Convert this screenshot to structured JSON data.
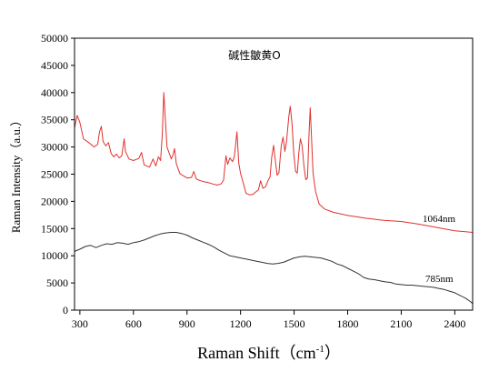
{
  "chart_data": {
    "type": "line",
    "title": "碱性皺黄O",
    "xlabel": "Raman Shift（cm",
    "xlabel_sup": "-1",
    "xlabel_close": "）",
    "ylabel": "Raman Intensity（a.u.）",
    "xlim": [
      270,
      2500
    ],
    "ylim": [
      0,
      50000
    ],
    "x_ticks": [
      300,
      600,
      900,
      1200,
      1500,
      1800,
      2100,
      2400
    ],
    "y_ticks": [
      0,
      5000,
      10000,
      15000,
      20000,
      25000,
      30000,
      35000,
      40000,
      45000,
      50000
    ],
    "grid": false,
    "series": [
      {
        "name": "1064nm",
        "color": "#e0312e",
        "points": [
          [
            270,
            33500
          ],
          [
            285,
            35800
          ],
          [
            300,
            34500
          ],
          [
            320,
            31500
          ],
          [
            350,
            30800
          ],
          [
            380,
            30000
          ],
          [
            400,
            30500
          ],
          [
            410,
            32800
          ],
          [
            420,
            33800
          ],
          [
            430,
            31000
          ],
          [
            445,
            30200
          ],
          [
            460,
            30800
          ],
          [
            475,
            28800
          ],
          [
            490,
            28200
          ],
          [
            505,
            28700
          ],
          [
            520,
            28000
          ],
          [
            535,
            28400
          ],
          [
            548,
            31500
          ],
          [
            555,
            29200
          ],
          [
            575,
            27800
          ],
          [
            600,
            27500
          ],
          [
            630,
            27900
          ],
          [
            645,
            29000
          ],
          [
            660,
            26700
          ],
          [
            690,
            26300
          ],
          [
            710,
            27800
          ],
          [
            725,
            26500
          ],
          [
            740,
            28200
          ],
          [
            752,
            27500
          ],
          [
            762,
            32500
          ],
          [
            770,
            40000
          ],
          [
            778,
            35500
          ],
          [
            788,
            30000
          ],
          [
            800,
            28900
          ],
          [
            812,
            27800
          ],
          [
            822,
            28600
          ],
          [
            830,
            29700
          ],
          [
            840,
            26900
          ],
          [
            860,
            25100
          ],
          [
            880,
            24700
          ],
          [
            900,
            24300
          ],
          [
            925,
            24400
          ],
          [
            938,
            25500
          ],
          [
            952,
            24100
          ],
          [
            975,
            23800
          ],
          [
            995,
            23600
          ],
          [
            1015,
            23500
          ],
          [
            1045,
            23200
          ],
          [
            1070,
            23000
          ],
          [
            1090,
            23200
          ],
          [
            1105,
            23900
          ],
          [
            1118,
            28400
          ],
          [
            1128,
            26800
          ],
          [
            1140,
            28000
          ],
          [
            1155,
            27300
          ],
          [
            1165,
            28200
          ],
          [
            1180,
            32800
          ],
          [
            1190,
            27000
          ],
          [
            1200,
            25100
          ],
          [
            1215,
            23400
          ],
          [
            1230,
            21500
          ],
          [
            1250,
            21200
          ],
          [
            1270,
            21300
          ],
          [
            1288,
            21800
          ],
          [
            1300,
            22100
          ],
          [
            1312,
            23800
          ],
          [
            1325,
            22400
          ],
          [
            1340,
            22700
          ],
          [
            1355,
            23900
          ],
          [
            1365,
            24500
          ],
          [
            1375,
            28200
          ],
          [
            1385,
            30300
          ],
          [
            1393,
            28000
          ],
          [
            1405,
            24800
          ],
          [
            1415,
            25300
          ],
          [
            1428,
            30200
          ],
          [
            1438,
            31800
          ],
          [
            1448,
            29200
          ],
          [
            1458,
            31100
          ],
          [
            1470,
            35500
          ],
          [
            1478,
            37500
          ],
          [
            1488,
            34500
          ],
          [
            1498,
            28800
          ],
          [
            1508,
            25500
          ],
          [
            1518,
            25200
          ],
          [
            1526,
            28800
          ],
          [
            1535,
            31500
          ],
          [
            1545,
            30200
          ],
          [
            1555,
            26500
          ],
          [
            1565,
            24000
          ],
          [
            1575,
            24300
          ],
          [
            1583,
            32000
          ],
          [
            1590,
            37200
          ],
          [
            1598,
            31500
          ],
          [
            1606,
            25200
          ],
          [
            1620,
            21800
          ],
          [
            1640,
            19500
          ],
          [
            1670,
            18600
          ],
          [
            1720,
            18000
          ],
          [
            1800,
            17400
          ],
          [
            1900,
            16900
          ],
          [
            2000,
            16500
          ],
          [
            2100,
            16300
          ],
          [
            2200,
            15800
          ],
          [
            2300,
            15200
          ],
          [
            2400,
            14600
          ],
          [
            2500,
            14300
          ]
        ]
      },
      {
        "name": "785nm",
        "color": "#333333",
        "points": [
          [
            270,
            10800
          ],
          [
            300,
            11200
          ],
          [
            330,
            11700
          ],
          [
            360,
            11900
          ],
          [
            390,
            11500
          ],
          [
            420,
            11900
          ],
          [
            450,
            12200
          ],
          [
            480,
            12100
          ],
          [
            510,
            12400
          ],
          [
            540,
            12300
          ],
          [
            570,
            12100
          ],
          [
            600,
            12400
          ],
          [
            630,
            12600
          ],
          [
            660,
            12900
          ],
          [
            690,
            13300
          ],
          [
            720,
            13700
          ],
          [
            750,
            14000
          ],
          [
            780,
            14200
          ],
          [
            810,
            14300
          ],
          [
            840,
            14300
          ],
          [
            870,
            14100
          ],
          [
            900,
            13800
          ],
          [
            930,
            13300
          ],
          [
            960,
            12900
          ],
          [
            990,
            12500
          ],
          [
            1020,
            12100
          ],
          [
            1050,
            11600
          ],
          [
            1080,
            11000
          ],
          [
            1110,
            10500
          ],
          [
            1140,
            10000
          ],
          [
            1170,
            9800
          ],
          [
            1200,
            9600
          ],
          [
            1230,
            9400
          ],
          [
            1260,
            9200
          ],
          [
            1290,
            9000
          ],
          [
            1320,
            8800
          ],
          [
            1350,
            8600
          ],
          [
            1380,
            8500
          ],
          [
            1410,
            8600
          ],
          [
            1440,
            8800
          ],
          [
            1470,
            9200
          ],
          [
            1500,
            9600
          ],
          [
            1530,
            9800
          ],
          [
            1560,
            9900
          ],
          [
            1590,
            9800
          ],
          [
            1620,
            9700
          ],
          [
            1650,
            9600
          ],
          [
            1680,
            9300
          ],
          [
            1710,
            9000
          ],
          [
            1740,
            8500
          ],
          [
            1770,
            8200
          ],
          [
            1800,
            7700
          ],
          [
            1830,
            7200
          ],
          [
            1860,
            6700
          ],
          [
            1890,
            6000
          ],
          [
            1920,
            5700
          ],
          [
            1950,
            5600
          ],
          [
            1980,
            5400
          ],
          [
            2010,
            5200
          ],
          [
            2040,
            5100
          ],
          [
            2070,
            4800
          ],
          [
            2100,
            4700
          ],
          [
            2130,
            4600
          ],
          [
            2160,
            4600
          ],
          [
            2190,
            4500
          ],
          [
            2220,
            4400
          ],
          [
            2250,
            4300
          ],
          [
            2280,
            4200
          ],
          [
            2310,
            4000
          ],
          [
            2340,
            3800
          ],
          [
            2370,
            3500
          ],
          [
            2400,
            3200
          ],
          [
            2430,
            2700
          ],
          [
            2460,
            2200
          ],
          [
            2490,
            1500
          ],
          [
            2500,
            1200
          ]
        ]
      }
    ]
  }
}
